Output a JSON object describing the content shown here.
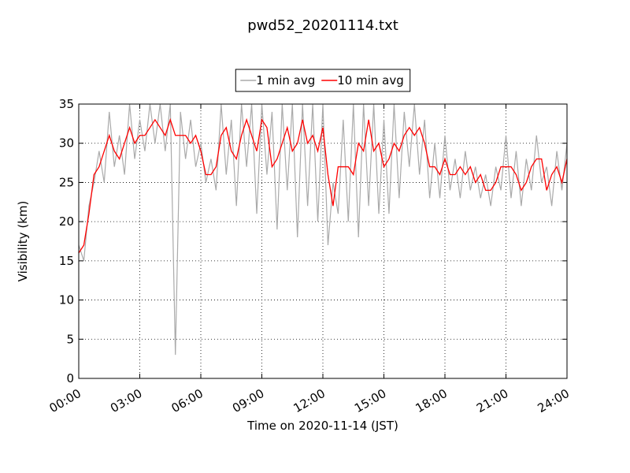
{
  "chart_data": {
    "type": "line",
    "title": "pwd52_20201114.txt",
    "xlabel": "Time on 2020-11-14 (JST)",
    "ylabel": "Visibility (km)",
    "x": [
      0,
      0.25,
      0.5,
      0.75,
      1,
      1.25,
      1.5,
      1.75,
      2,
      2.25,
      2.5,
      2.75,
      3,
      3.25,
      3.5,
      3.75,
      4,
      4.25,
      4.5,
      4.75,
      5,
      5.25,
      5.5,
      5.75,
      6,
      6.25,
      6.5,
      6.75,
      7,
      7.25,
      7.5,
      7.75,
      8,
      8.25,
      8.5,
      8.75,
      9,
      9.25,
      9.5,
      9.75,
      10,
      10.25,
      10.5,
      10.75,
      11,
      11.25,
      11.5,
      11.75,
      12,
      12.25,
      12.5,
      12.75,
      13,
      13.25,
      13.5,
      13.75,
      14,
      14.25,
      14.5,
      14.75,
      15,
      15.25,
      15.5,
      15.75,
      16,
      16.25,
      16.5,
      16.75,
      17,
      17.25,
      17.5,
      17.75,
      18,
      18.25,
      18.5,
      18.75,
      19,
      19.25,
      19.5,
      19.75,
      20,
      20.25,
      20.5,
      20.75,
      21,
      21.25,
      21.5,
      21.75,
      22,
      22.25,
      22.5,
      22.75,
      23,
      23.25,
      23.5,
      23.75,
      24
    ],
    "series": [
      {
        "name": "1 min avg",
        "color": "#aaaaaa",
        "values": [
          17,
          15,
          22,
          25,
          29,
          25,
          34,
          27,
          31,
          26,
          35,
          28,
          33,
          29,
          35,
          30,
          35,
          29,
          35,
          3,
          34,
          28,
          33,
          27,
          30,
          25,
          28,
          24,
          35,
          26,
          33,
          22,
          35,
          27,
          35,
          21,
          35,
          26,
          34,
          19,
          35,
          24,
          35,
          18,
          35,
          22,
          35,
          20,
          35,
          17,
          25,
          21,
          33,
          20,
          35,
          18,
          35,
          22,
          35,
          21,
          33,
          21,
          35,
          23,
          34,
          27,
          35,
          26,
          33,
          23,
          30,
          23,
          31,
          24,
          28,
          23,
          29,
          24,
          27,
          23,
          26,
          22,
          27,
          24,
          31,
          23,
          29,
          22,
          28,
          24,
          31,
          25,
          27,
          22,
          29,
          24,
          30
        ]
      },
      {
        "name": "10 min avg",
        "color": "#ff0000",
        "values": [
          16,
          17,
          21,
          26,
          27,
          29,
          31,
          29,
          28,
          30,
          32,
          30,
          31,
          31,
          32,
          33,
          32,
          31,
          33,
          31,
          31,
          31,
          30,
          31,
          29,
          26,
          26,
          27,
          31,
          32,
          29,
          28,
          31,
          33,
          31,
          29,
          33,
          32,
          27,
          28,
          30,
          32,
          29,
          30,
          33,
          30,
          31,
          29,
          32,
          26,
          22,
          27,
          27,
          27,
          26,
          30,
          29,
          33,
          29,
          30,
          27,
          28,
          30,
          29,
          31,
          32,
          31,
          32,
          30,
          27,
          27,
          26,
          28,
          26,
          26,
          27,
          26,
          27,
          25,
          26,
          24,
          24,
          25,
          27,
          27,
          27,
          26,
          24,
          25,
          27,
          28,
          28,
          24,
          26,
          27,
          25,
          28
        ]
      }
    ],
    "xlim": [
      0,
      24
    ],
    "xticks": [
      {
        "value": 0,
        "label": "00:00"
      },
      {
        "value": 3,
        "label": "03:00"
      },
      {
        "value": 6,
        "label": "06:00"
      },
      {
        "value": 9,
        "label": "09:00"
      },
      {
        "value": 12,
        "label": "12:00"
      },
      {
        "value": 15,
        "label": "15:00"
      },
      {
        "value": 18,
        "label": "18:00"
      },
      {
        "value": 21,
        "label": "21:00"
      },
      {
        "value": 24,
        "label": "24:00"
      }
    ],
    "ylim": [
      0,
      35
    ],
    "yticks": [
      0,
      5,
      10,
      15,
      20,
      25,
      30,
      35
    ],
    "grid": true,
    "legend": "top"
  }
}
